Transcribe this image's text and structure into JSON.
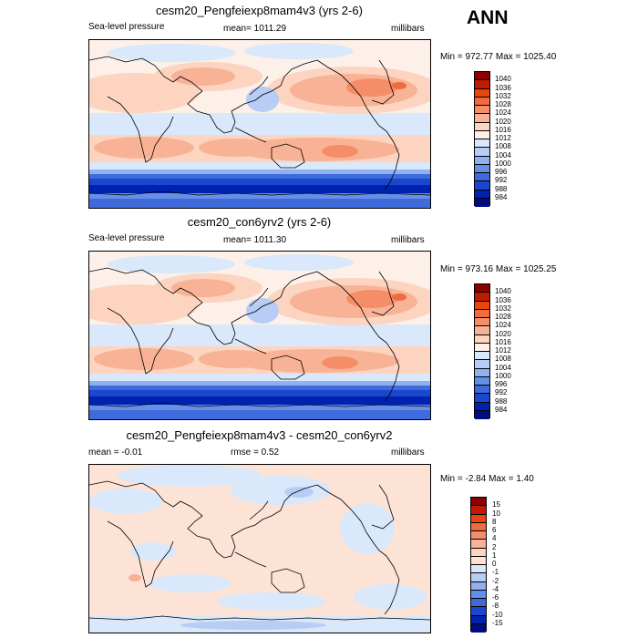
{
  "season": "ANN",
  "colors": {
    "abs_scale": [
      "#8b0000",
      "#c01a00",
      "#e8460a",
      "#f06b3f",
      "#f58e68",
      "#f8b295",
      "#fcd4c0",
      "#fdf0e8",
      "#d9e8fa",
      "#b7cdf5",
      "#8fb1ef",
      "#6690e6",
      "#3f6adb",
      "#1a47cc",
      "#0022b0",
      "#000d80"
    ],
    "diff_scale": [
      "#8b0000",
      "#c01a00",
      "#e8460a",
      "#f06b3f",
      "#f58e68",
      "#f8b295",
      "#fcd4c0",
      "#fde3d6",
      "#d9e8fa",
      "#b7cdf5",
      "#8fb1ef",
      "#6690e6",
      "#3f6adb",
      "#1a47cc",
      "#0022b0",
      "#000d80"
    ]
  },
  "panels": [
    {
      "title": "cesm20_Pengfeiexp8mam4v3 (yrs 2-6)",
      "left_label": "Sea-level pressure",
      "center_label": "mean= 1011.29",
      "right_label": "millibars",
      "minmax": "Min = 972.77 Max = 1025.40",
      "levels": [
        "1040",
        "1036",
        "1032",
        "1028",
        "1024",
        "1020",
        "1016",
        "1012",
        "1008",
        "1004",
        "1000",
        "996",
        "992",
        "988",
        "984"
      ]
    },
    {
      "title": "cesm20_con6yrv2 (yrs 2-6)",
      "left_label": "Sea-level pressure",
      "center_label": "mean= 1011.30",
      "right_label": "millibars",
      "minmax": "Min = 973.16 Max = 1025.25",
      "levels": [
        "1040",
        "1036",
        "1032",
        "1028",
        "1024",
        "1020",
        "1016",
        "1012",
        "1008",
        "1004",
        "1000",
        "996",
        "992",
        "988",
        "984"
      ]
    },
    {
      "title": "cesm20_Pengfeiexp8mam4v3 - cesm20_con6yrv2",
      "left_label": "mean =  -0.01",
      "center_label": "rmse =  0.52",
      "right_label": "millibars",
      "minmax": "Min =  -2.84 Max =   1.40",
      "levels": [
        "15",
        "10",
        "8",
        "6",
        "4",
        "2",
        "1",
        "0",
        "-1",
        "-2",
        "-4",
        "-6",
        "-8",
        "-10",
        "-15"
      ]
    }
  ]
}
